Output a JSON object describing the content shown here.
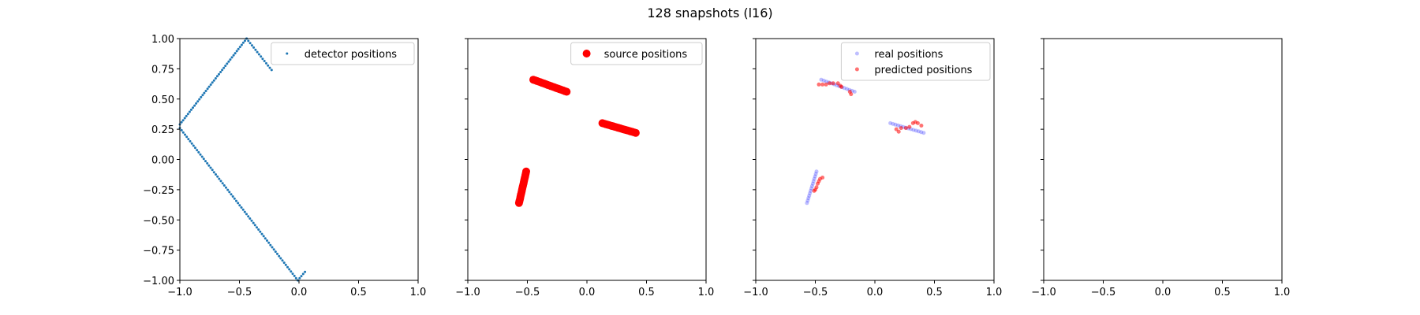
{
  "title": "128 snapshots (l16)",
  "chart_data": [
    {
      "type": "scatter",
      "xlim": [
        -1,
        1
      ],
      "ylim": [
        -1,
        1
      ],
      "xticks": [
        "−1.0",
        "−0.5",
        "0.0",
        "0.5",
        "1.0"
      ],
      "yticks": [
        "−1.00",
        "−0.75",
        "−0.50",
        "−0.25",
        "0.00",
        "0.25",
        "0.50",
        "0.75",
        "1.00"
      ],
      "show_yticklabels": true,
      "legend_position": "top-right",
      "series": [
        {
          "name": "detector positions",
          "color": "#1f77b4",
          "marker_size": 1.5,
          "opacity": 1,
          "segments": [
            {
              "from": [
                -0.23,
                0.74
              ],
              "to": [
                -0.44,
                1.0
              ],
              "n": 15
            },
            {
              "from": [
                -0.44,
                1.0
              ],
              "to": [
                -1.0,
                0.29
              ],
              "n": 42
            },
            {
              "from": [
                -1.0,
                0.26
              ],
              "to": [
                -0.01,
                -1.0
              ],
              "n": 70
            },
            {
              "from": [
                -0.01,
                -1.0
              ],
              "to": [
                0.05,
                -0.93
              ],
              "n": 5
            }
          ]
        }
      ]
    },
    {
      "type": "scatter",
      "xlim": [
        -1,
        1
      ],
      "ylim": [
        -1,
        1
      ],
      "xticks": [
        "−1.0",
        "−0.5",
        "0.0",
        "0.5",
        "1.0"
      ],
      "yticks": [
        "",
        "",
        "",
        "",
        "",
        "",
        "",
        "",
        ""
      ],
      "show_yticklabels": false,
      "legend_position": "top-right",
      "series": [
        {
          "name": "source positions",
          "color": "#ff0000",
          "marker_size": 5,
          "opacity": 1,
          "segments": [
            {
              "from": [
                -0.45,
                0.66
              ],
              "to": [
                -0.17,
                0.56
              ],
              "n": 20
            },
            {
              "from": [
                0.13,
                0.3
              ],
              "to": [
                0.41,
                0.22
              ],
              "n": 20
            },
            {
              "from": [
                -0.57,
                -0.36
              ],
              "to": [
                -0.51,
                -0.1
              ],
              "n": 20
            }
          ]
        }
      ]
    },
    {
      "type": "scatter",
      "xlim": [
        -1,
        1
      ],
      "ylim": [
        -1,
        1
      ],
      "xticks": [
        "−1.0",
        "−0.5",
        "0.0",
        "0.5",
        "1.0"
      ],
      "yticks": [
        "",
        "",
        "",
        "",
        "",
        "",
        "",
        "",
        ""
      ],
      "show_yticklabels": false,
      "legend_position": "top-right",
      "series": [
        {
          "name": "real positions",
          "color": "#0000ff",
          "marker_size": 2.5,
          "opacity": 0.25,
          "segments": [
            {
              "from": [
                -0.45,
                0.66
              ],
              "to": [
                -0.17,
                0.56
              ],
              "n": 14
            },
            {
              "from": [
                0.13,
                0.3
              ],
              "to": [
                0.41,
                0.22
              ],
              "n": 14
            },
            {
              "from": [
                -0.57,
                -0.36
              ],
              "to": [
                -0.49,
                -0.1
              ],
              "n": 14
            }
          ]
        },
        {
          "name": "predicted positions",
          "color": "#ff0000",
          "marker_size": 2.5,
          "opacity": 0.55,
          "points": [
            [
              -0.47,
              0.62
            ],
            [
              -0.44,
              0.62
            ],
            [
              -0.41,
              0.62
            ],
            [
              -0.38,
              0.63
            ],
            [
              -0.35,
              0.63
            ],
            [
              -0.31,
              0.63
            ],
            [
              -0.29,
              0.61
            ],
            [
              -0.28,
              0.6
            ],
            [
              -0.21,
              0.56
            ],
            [
              -0.2,
              0.54
            ],
            [
              0.18,
              0.25
            ],
            [
              0.2,
              0.23
            ],
            [
              0.22,
              0.26
            ],
            [
              0.26,
              0.26
            ],
            [
              0.29,
              0.27
            ],
            [
              0.32,
              0.3
            ],
            [
              0.34,
              0.31
            ],
            [
              0.36,
              0.3
            ],
            [
              0.39,
              0.28
            ],
            [
              -0.5,
              -0.25
            ],
            [
              -0.51,
              -0.26
            ],
            [
              -0.49,
              -0.23
            ],
            [
              -0.48,
              -0.2
            ],
            [
              -0.47,
              -0.18
            ],
            [
              -0.46,
              -0.16
            ],
            [
              -0.44,
              -0.15
            ]
          ]
        }
      ]
    },
    {
      "type": "scatter",
      "xlim": [
        -1,
        1
      ],
      "ylim": [
        -1,
        1
      ],
      "xticks": [
        "−1.0",
        "−0.5",
        "0.0",
        "0.5",
        "1.0"
      ],
      "yticks": [
        "",
        "",
        "",
        "",
        "",
        "",
        "",
        "",
        ""
      ],
      "show_yticklabels": false,
      "legend_position": "none",
      "series": []
    }
  ]
}
